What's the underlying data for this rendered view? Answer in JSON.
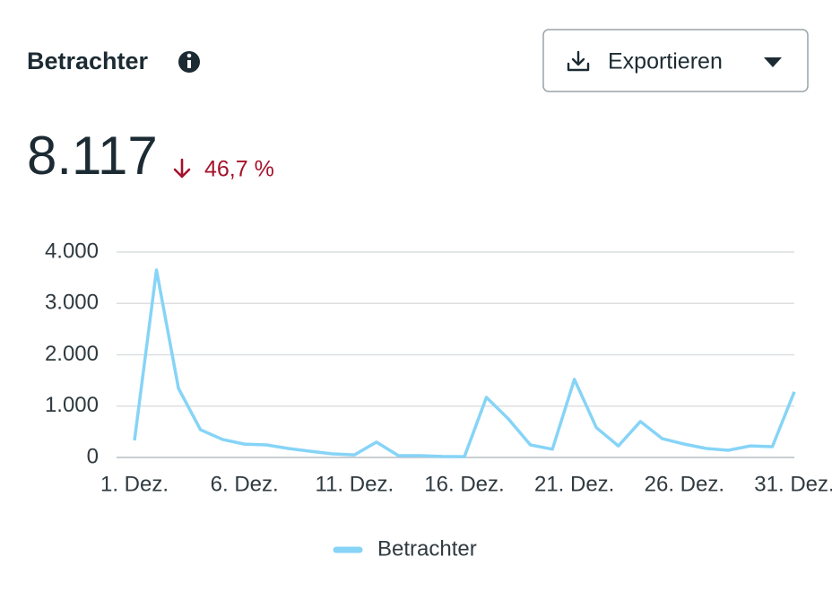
{
  "header": {
    "title": "Betrachter",
    "export_button": "Exportieren"
  },
  "summary": {
    "value": "8.117",
    "change": "46,7 %"
  },
  "chart_data": {
    "type": "line",
    "categories": [
      "1. Dez.",
      null,
      null,
      null,
      null,
      "6. Dez.",
      null,
      null,
      null,
      null,
      "11. Dez.",
      null,
      null,
      null,
      null,
      "16. Dez.",
      null,
      null,
      null,
      null,
      "21. Dez.",
      null,
      null,
      null,
      null,
      "26. Dez.",
      null,
      null,
      null,
      null,
      "31. Dez."
    ],
    "series": [
      {
        "name": "Betrachter",
        "color": "#86d4f7",
        "values": [
          332,
          3650,
          1345,
          540,
          350,
          260,
          245,
          175,
          120,
          70,
          50,
          300,
          35,
          35,
          20,
          15,
          1170,
          750,
          245,
          160,
          1520,
          580,
          225,
          700,
          365,
          260,
          175,
          140,
          225,
          210,
          1280
        ]
      }
    ],
    "ylim": [
      0,
      4000
    ],
    "yticks": [
      0,
      {
        "value": 1000,
        "label": "1.000"
      },
      {
        "value": 2000,
        "label": "2.000"
      },
      {
        "value": 3000,
        "label": "3.000"
      },
      {
        "value": 4000,
        "label": "4.000"
      }
    ],
    "grid": true,
    "legend": "bottom"
  }
}
